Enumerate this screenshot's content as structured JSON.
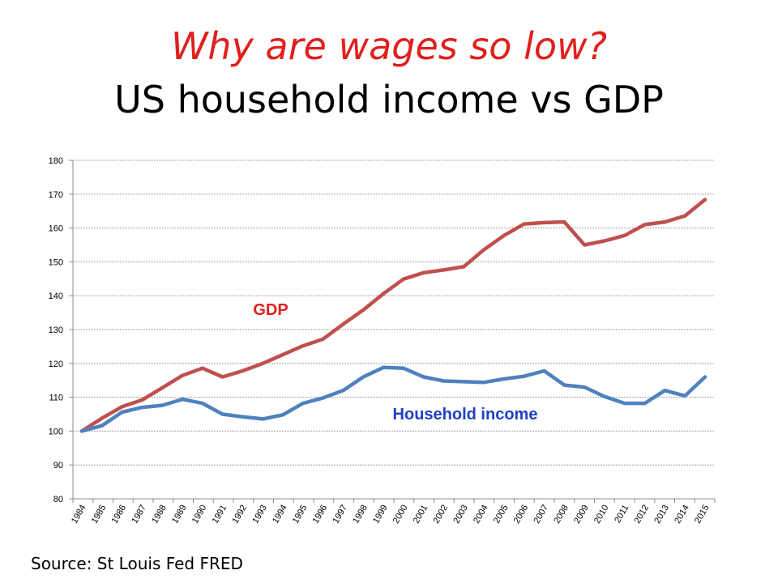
{
  "slide": {
    "title_line1": "Why are wages so low?",
    "title_line2": "US household income vs GDP",
    "source": "Source: St Louis Fed FRED",
    "colors": {
      "title_accent": "#e0201c",
      "gdp": "#c0504d",
      "income": "#4f81bd",
      "gdp_label": "#e0201c",
      "income_label": "#1f3fc4"
    }
  },
  "chart_data": {
    "type": "line",
    "x": [
      "1984",
      "1985",
      "1986",
      "1987",
      "1988",
      "1989",
      "1990",
      "1991",
      "1992",
      "1993",
      "1994",
      "1995",
      "1996",
      "1997",
      "1998",
      "1999",
      "2000",
      "2001",
      "2002",
      "2003",
      "2004",
      "2005",
      "2006",
      "2007",
      "2008",
      "2009",
      "2010",
      "2011",
      "2012",
      "2013",
      "2014",
      "2015"
    ],
    "ylim": [
      80,
      180
    ],
    "yticks": [
      80,
      90,
      100,
      110,
      120,
      130,
      140,
      150,
      160,
      170,
      180
    ],
    "grid": true,
    "series": [
      {
        "name": "GDP",
        "label": "GDP",
        "values": [
          100,
          103.8,
          107.2,
          109.2,
          112.8,
          116.4,
          118.6,
          116.0,
          117.8,
          120.0,
          122.6,
          125.2,
          127.2,
          131.6,
          135.8,
          140.6,
          144.9,
          146.8,
          147.6,
          148.6,
          153.6,
          157.8,
          161.2,
          161.6,
          161.8,
          155.0,
          156.2,
          157.8,
          161.0,
          161.8,
          163.6,
          168.4
        ]
      },
      {
        "name": "Household income",
        "label": "Household income",
        "values": [
          100,
          101.6,
          105.6,
          107.0,
          107.6,
          109.4,
          108.2,
          105.0,
          104.2,
          103.6,
          104.8,
          108.2,
          109.8,
          112.0,
          116.0,
          118.8,
          118.6,
          116.0,
          114.8,
          114.6,
          114.4,
          115.4,
          116.2,
          117.8,
          113.6,
          113.0,
          110.2,
          108.2,
          108.2,
          112.0,
          110.4,
          116.0
        ]
      }
    ]
  }
}
